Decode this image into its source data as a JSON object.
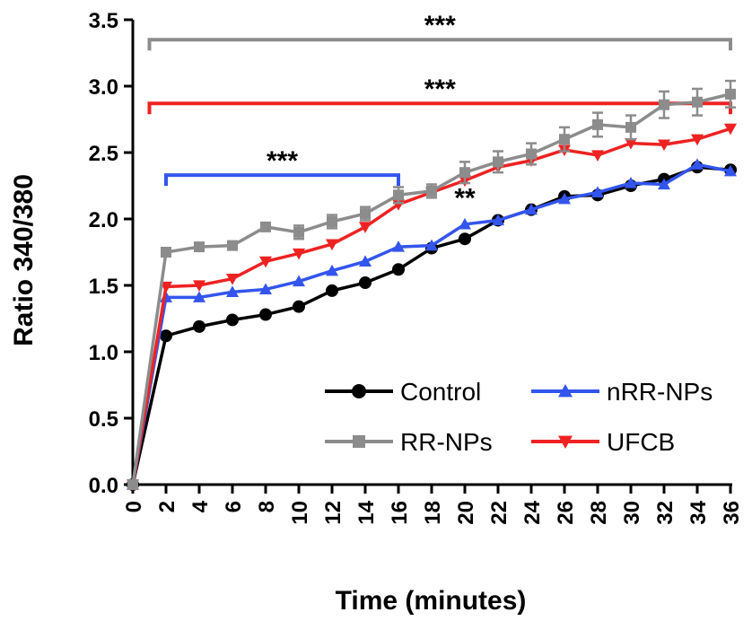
{
  "chart_data": {
    "type": "line",
    "xlabel": "Time (minutes)",
    "ylabel": "Ratio 340/380",
    "ylim": [
      0,
      3.5
    ],
    "xlim": [
      0,
      36
    ],
    "y_ticks": [
      "0.0",
      "0.5",
      "1.0",
      "1.5",
      "2.0",
      "2.5",
      "3.0",
      "3.5"
    ],
    "x_ticks": [
      "0",
      "2",
      "4",
      "6",
      "8",
      "10",
      "12",
      "14",
      "16",
      "18",
      "20",
      "22",
      "24",
      "26",
      "28",
      "30",
      "32",
      "34",
      "36"
    ],
    "legend_placement": "bottom-right",
    "series": [
      {
        "name": "Control",
        "color": "#000000",
        "marker": "circle",
        "x": [
          0,
          2,
          4,
          6,
          8,
          10,
          12,
          14,
          16,
          18,
          20,
          22,
          24,
          26,
          28,
          30,
          32,
          34,
          36
        ],
        "values": [
          0.0,
          1.12,
          1.19,
          1.24,
          1.28,
          1.34,
          1.46,
          1.52,
          1.62,
          1.78,
          1.85,
          1.99,
          2.07,
          2.17,
          2.18,
          2.25,
          2.3,
          2.39,
          2.37
        ]
      },
      {
        "name": "nRR-NPs",
        "color": "#3355ee",
        "marker": "triangle-up",
        "x": [
          0,
          2,
          4,
          6,
          8,
          10,
          12,
          14,
          16,
          18,
          20,
          22,
          24,
          26,
          28,
          30,
          32,
          34,
          36
        ],
        "values": [
          0.0,
          1.41,
          1.41,
          1.45,
          1.47,
          1.53,
          1.61,
          1.68,
          1.79,
          1.8,
          1.96,
          1.99,
          2.07,
          2.15,
          2.2,
          2.27,
          2.26,
          2.41,
          2.36
        ]
      },
      {
        "name": "RR-NPs",
        "color": "#8c8c8c",
        "marker": "square",
        "x": [
          0,
          2,
          4,
          6,
          8,
          10,
          12,
          14,
          16,
          18,
          20,
          22,
          24,
          26,
          28,
          30,
          32,
          34,
          36
        ],
        "values": [
          0.0,
          1.75,
          1.79,
          1.8,
          1.94,
          1.9,
          1.98,
          2.04,
          2.18,
          2.21,
          2.35,
          2.43,
          2.49,
          2.6,
          2.71,
          2.69,
          2.86,
          2.88,
          2.94
        ],
        "errors": [
          0,
          0.02,
          0.02,
          0.02,
          0.02,
          0.05,
          0.05,
          0.05,
          0.06,
          0.05,
          0.08,
          0.08,
          0.08,
          0.09,
          0.09,
          0.09,
          0.1,
          0.1,
          0.1
        ]
      },
      {
        "name": "UFCB",
        "color": "#ee2222",
        "marker": "triangle-down",
        "x": [
          0,
          2,
          4,
          6,
          8,
          10,
          12,
          14,
          16,
          18,
          20,
          22,
          24,
          26,
          28,
          30,
          32,
          34,
          36
        ],
        "values": [
          0.0,
          1.49,
          1.5,
          1.55,
          1.68,
          1.74,
          1.81,
          1.94,
          2.11,
          2.2,
          2.29,
          2.39,
          2.44,
          2.52,
          2.48,
          2.57,
          2.56,
          2.6,
          2.68
        ]
      }
    ],
    "annotations": [
      {
        "text": "***",
        "color": "#8c8c8c",
        "x_start": 1,
        "x_end": 36,
        "y": 3.35
      },
      {
        "text": "***",
        "color": "#ee2222",
        "x_start": 1,
        "x_end": 36,
        "y": 2.87
      },
      {
        "text": "***",
        "color": "#3355ee",
        "x_start": 2,
        "x_end": 16,
        "y": 2.33
      },
      {
        "text": "**",
        "color": "#000000",
        "x": 20,
        "y": 2.09
      }
    ]
  }
}
